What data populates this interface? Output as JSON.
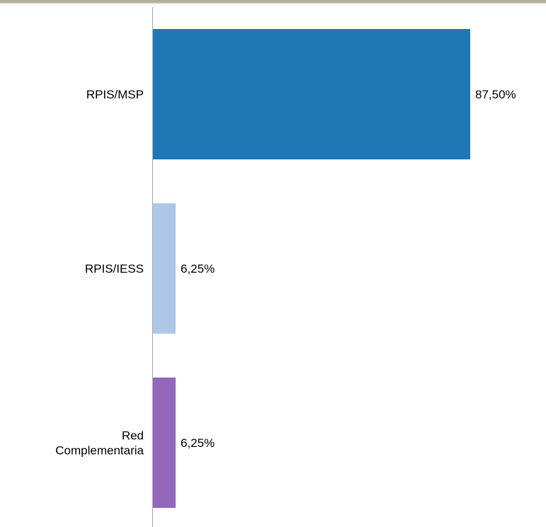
{
  "chart_data": {
    "type": "bar",
    "orientation": "horizontal",
    "categories": [
      "RPIS/MSP",
      "RPIS/IESS",
      "Red Complementaria"
    ],
    "category_lines": [
      [
        "RPIS/MSP"
      ],
      [
        "RPIS/IESS"
      ],
      [
        "Red",
        "Complementaria"
      ]
    ],
    "values": [
      87.5,
      6.25,
      6.25
    ],
    "value_labels": [
      "87,50%",
      "6,25%",
      "6,25%"
    ],
    "colors": [
      "#1f77b4",
      "#aec7e8",
      "#9467bd"
    ],
    "xlim": [
      0,
      100
    ],
    "grid": false,
    "legend": "none",
    "title": "",
    "xlabel": "",
    "ylabel": ""
  }
}
